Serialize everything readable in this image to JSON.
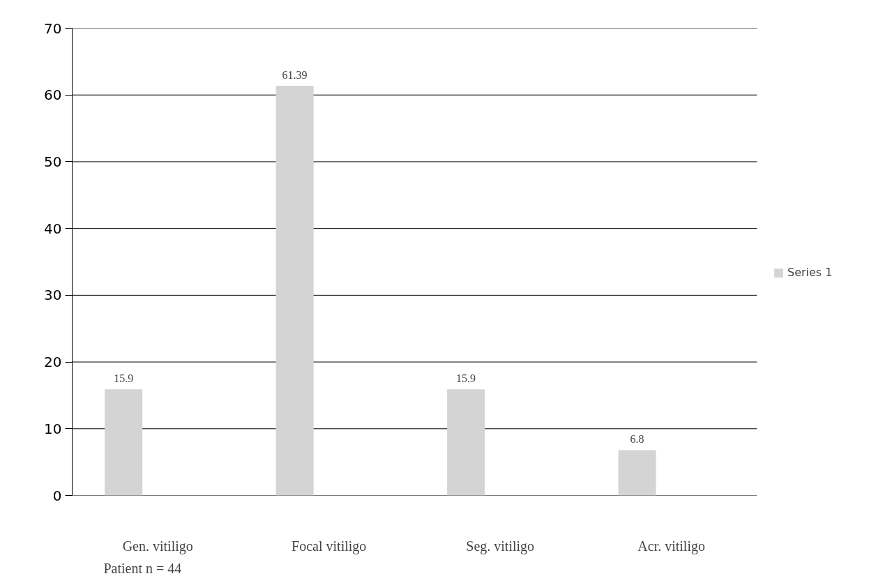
{
  "chart_data": {
    "type": "bar",
    "categories": [
      "Gen. vitiligo",
      "Focal vitiligo",
      "Seg. vitiligo",
      "Acr. vitiligo"
    ],
    "series": [
      {
        "name": "Series 1",
        "color": "#d4d4d5",
        "values": [
          15.9,
          61.39,
          15.9,
          6.8
        ]
      }
    ],
    "ylim": [
      0,
      70
    ],
    "yticks": [
      0,
      10,
      20,
      30,
      40,
      50,
      60,
      70
    ],
    "grid": "y",
    "data_labels": true,
    "legend": "right",
    "annotations": [
      "Patient n = 44"
    ]
  }
}
